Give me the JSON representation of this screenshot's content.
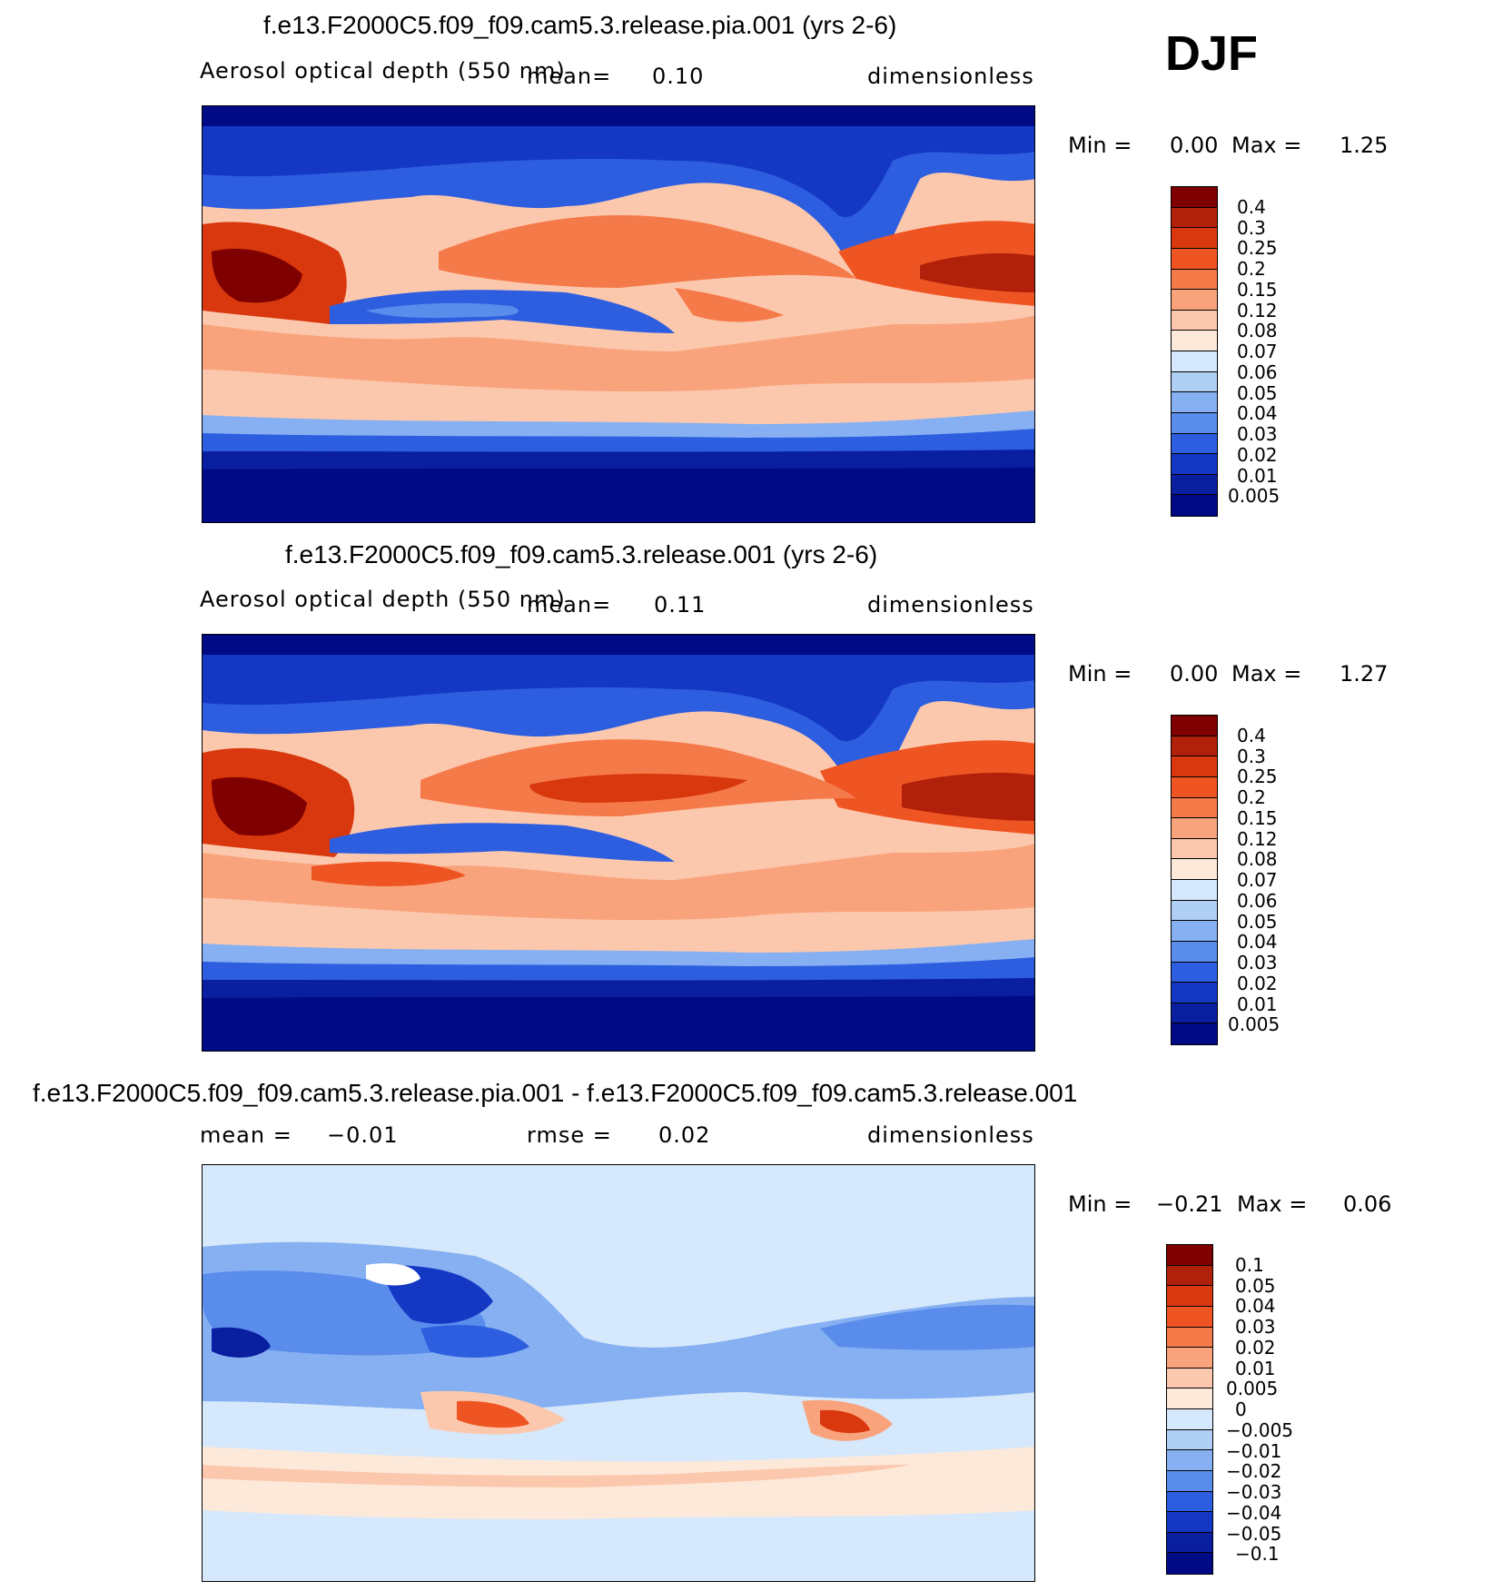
{
  "season": "DJF",
  "panels": [
    {
      "title": "f.e13.F2000C5.f09_f09.cam5.3.release.pia.001 (yrs 2-6)",
      "variable": "Aerosol optical depth (550 nm)",
      "mean_label": "mean=",
      "mean_value": "0.10",
      "units": "dimensionless",
      "min_label": "Min =",
      "min_value": "0.00",
      "max_label": "Max =",
      "max_value": "1.25",
      "levels": [
        "0.4",
        "0.3",
        "0.25",
        "0.2",
        "0.15",
        "0.12",
        "0.08",
        "0.07",
        "0.06",
        "0.05",
        "0.04",
        "0.03",
        "0.02",
        "0.01",
        "0.005"
      ],
      "colors": [
        "#7f0000",
        "#b0200a",
        "#d9380e",
        "#ee5522",
        "#f57a4a",
        "#f9a37c",
        "#fcc8ad",
        "#fde9da",
        "#d6e8fb",
        "#b0cff5",
        "#86b0f1",
        "#5a8cec",
        "#2d5ee0",
        "#1438c4",
        "#0a1ea0",
        "#000a85"
      ]
    },
    {
      "title": "f.e13.F2000C5.f09_f09.cam5.3.release.001 (yrs 2-6)",
      "variable": "Aerosol optical depth (550 nm)",
      "mean_label": "mean=",
      "mean_value": "0.11",
      "units": "dimensionless",
      "min_label": "Min =",
      "min_value": "0.00",
      "max_label": "Max =",
      "max_value": "1.27",
      "levels": [
        "0.4",
        "0.3",
        "0.25",
        "0.2",
        "0.15",
        "0.12",
        "0.08",
        "0.07",
        "0.06",
        "0.05",
        "0.04",
        "0.03",
        "0.02",
        "0.01",
        "0.005"
      ],
      "colors": [
        "#7f0000",
        "#b0200a",
        "#d9380e",
        "#ee5522",
        "#f57a4a",
        "#f9a37c",
        "#fcc8ad",
        "#fde9da",
        "#d6e8fb",
        "#b0cff5",
        "#86b0f1",
        "#5a8cec",
        "#2d5ee0",
        "#1438c4",
        "#0a1ea0",
        "#000a85"
      ]
    },
    {
      "title": "f.e13.F2000C5.f09_f09.cam5.3.release.pia.001 - f.e13.F2000C5.f09_f09.cam5.3.release.001",
      "mean_label": "mean =",
      "mean_value": "−0.01",
      "rmse_label": "rmse =",
      "rmse_value": "0.02",
      "units": "dimensionless",
      "min_label": "Min =",
      "min_value": "−0.21",
      "max_label": "Max =",
      "max_value": "0.06",
      "levels": [
        "0.1",
        "0.05",
        "0.04",
        "0.03",
        "0.02",
        "0.01",
        "0.005",
        "0",
        "−0.005",
        "−0.01",
        "−0.02",
        "−0.03",
        "−0.04",
        "−0.05",
        "−0.1"
      ],
      "colors": [
        "#7f0000",
        "#b0200a",
        "#d9380e",
        "#ee5522",
        "#f57a4a",
        "#f9a37c",
        "#fcc8ad",
        "#fde9da",
        "#d6e8fb",
        "#b0cff5",
        "#86b0f1",
        "#5a8cec",
        "#2d5ee0",
        "#1438c4",
        "#0a1ea0",
        "#000a85"
      ]
    }
  ]
}
